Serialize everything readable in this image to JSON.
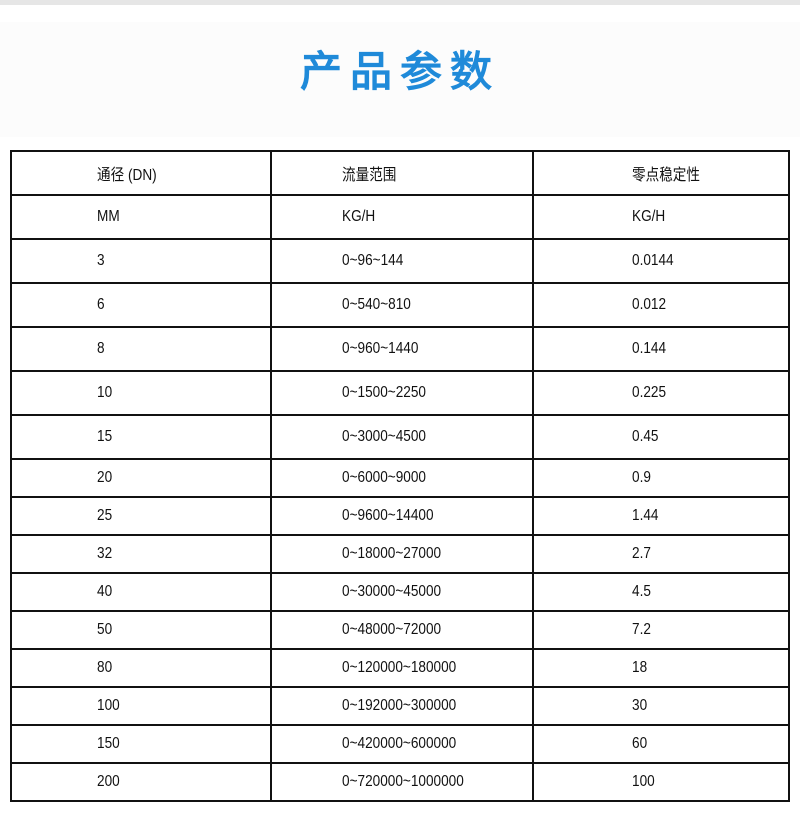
{
  "title": "产品参数",
  "table": {
    "headers": [
      "通径 (DN)",
      "流量范围",
      "零点稳定性"
    ],
    "units": [
      "MM",
      "KG/H",
      "KG/H"
    ],
    "rows": [
      [
        "3",
        "0~96~144",
        "0.0144"
      ],
      [
        "6",
        "0~540~810",
        "0.012"
      ],
      [
        "8",
        "0~960~1440",
        "0.144"
      ],
      [
        "10",
        "0~1500~2250",
        "0.225"
      ],
      [
        "15",
        "0~3000~4500",
        "0.45"
      ],
      [
        "20",
        "0~6000~9000",
        "0.9"
      ],
      [
        "25",
        "0~9600~14400",
        "1.44"
      ],
      [
        "32",
        "0~18000~27000",
        "2.7"
      ],
      [
        "40",
        "0~30000~45000",
        "4.5"
      ],
      [
        "50",
        "0~48000~72000",
        "7.2"
      ],
      [
        "80",
        "0~120000~180000",
        "18"
      ],
      [
        "100",
        "0~192000~300000",
        "30"
      ],
      [
        "150",
        "0~420000~600000",
        "60"
      ],
      [
        "200",
        "0~720000~1000000",
        "100"
      ]
    ]
  }
}
